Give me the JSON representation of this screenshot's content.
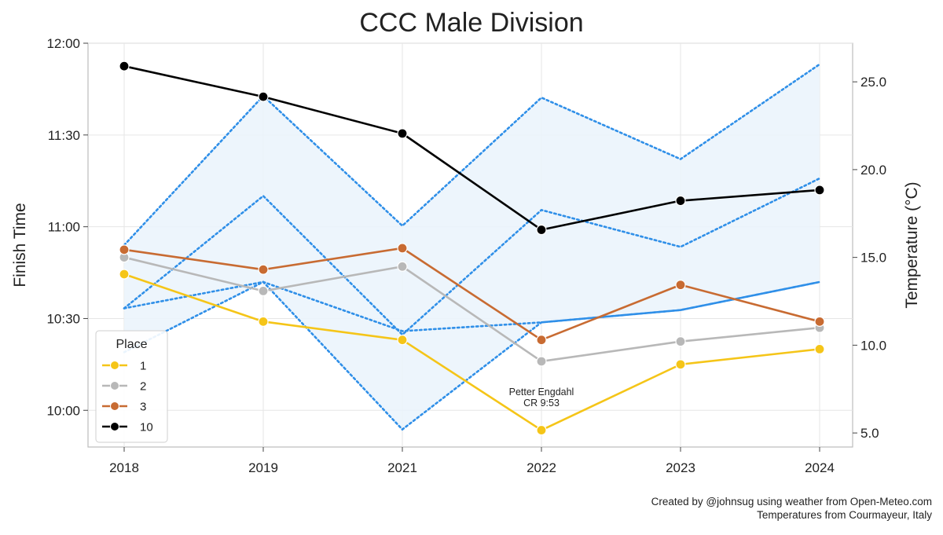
{
  "chart_data": {
    "type": "line",
    "title": "CCC Male Division",
    "x": [
      "2018",
      "2019",
      "2021",
      "2022",
      "2023",
      "2024"
    ],
    "ylabel": "Finish Time",
    "ylabel_right": "Temperature (°C)",
    "y_ticks": [
      "10:00",
      "10:30",
      "11:00",
      "11:30",
      "12:00"
    ],
    "y_tick_minutes": [
      600,
      630,
      660,
      690,
      720
    ],
    "ylim_minutes": [
      588,
      720
    ],
    "y2_ticks": [
      "5.0",
      "10.0",
      "15.0",
      "20.0",
      "25.0"
    ],
    "y2_tick_values": [
      5,
      10,
      15,
      20,
      25
    ],
    "y2lim": [
      4.2,
      27.2
    ],
    "grid": true,
    "legend": {
      "title": "Place",
      "position": "lower-left"
    },
    "series": [
      {
        "name": "1",
        "color": "#f5c518",
        "values_minutes": [
          644.5,
          629,
          623,
          593.5,
          615,
          620
        ]
      },
      {
        "name": "2",
        "color": "#b8b8b8",
        "values_minutes": [
          650,
          639,
          647,
          616,
          622.5,
          627
        ]
      },
      {
        "name": "3",
        "color": "#c86b32",
        "values_minutes": [
          652.5,
          646,
          653,
          623,
          641,
          629
        ]
      },
      {
        "name": "10",
        "color": "#000000",
        "values_minutes": [
          712.5,
          702.5,
          690.5,
          659,
          668.5,
          672
        ]
      }
    ],
    "temperature": {
      "color": "#2f8fe8",
      "fill": "#eaf3fb",
      "max_upper": [
        15.7,
        24.2,
        16.8,
        24.1,
        20.6,
        26.0
      ],
      "max_lower": [
        12.1,
        18.5,
        10.6,
        17.7,
        15.6,
        19.5
      ],
      "min_upper": [
        12.1,
        13.6,
        10.8,
        11.3,
        12.0,
        13.6
      ],
      "min_lower": [
        9.6,
        13.6,
        5.2,
        11.3,
        12.0,
        13.6
      ]
    },
    "annotation": {
      "x": "2022",
      "lines": [
        "Petter Engdahl",
        "CR 9:53"
      ]
    }
  },
  "footer": {
    "line1": "Created by @johnsug using weather from Open-Meteo.com",
    "line2": "Temperatures from Courmayeur, Italy"
  }
}
